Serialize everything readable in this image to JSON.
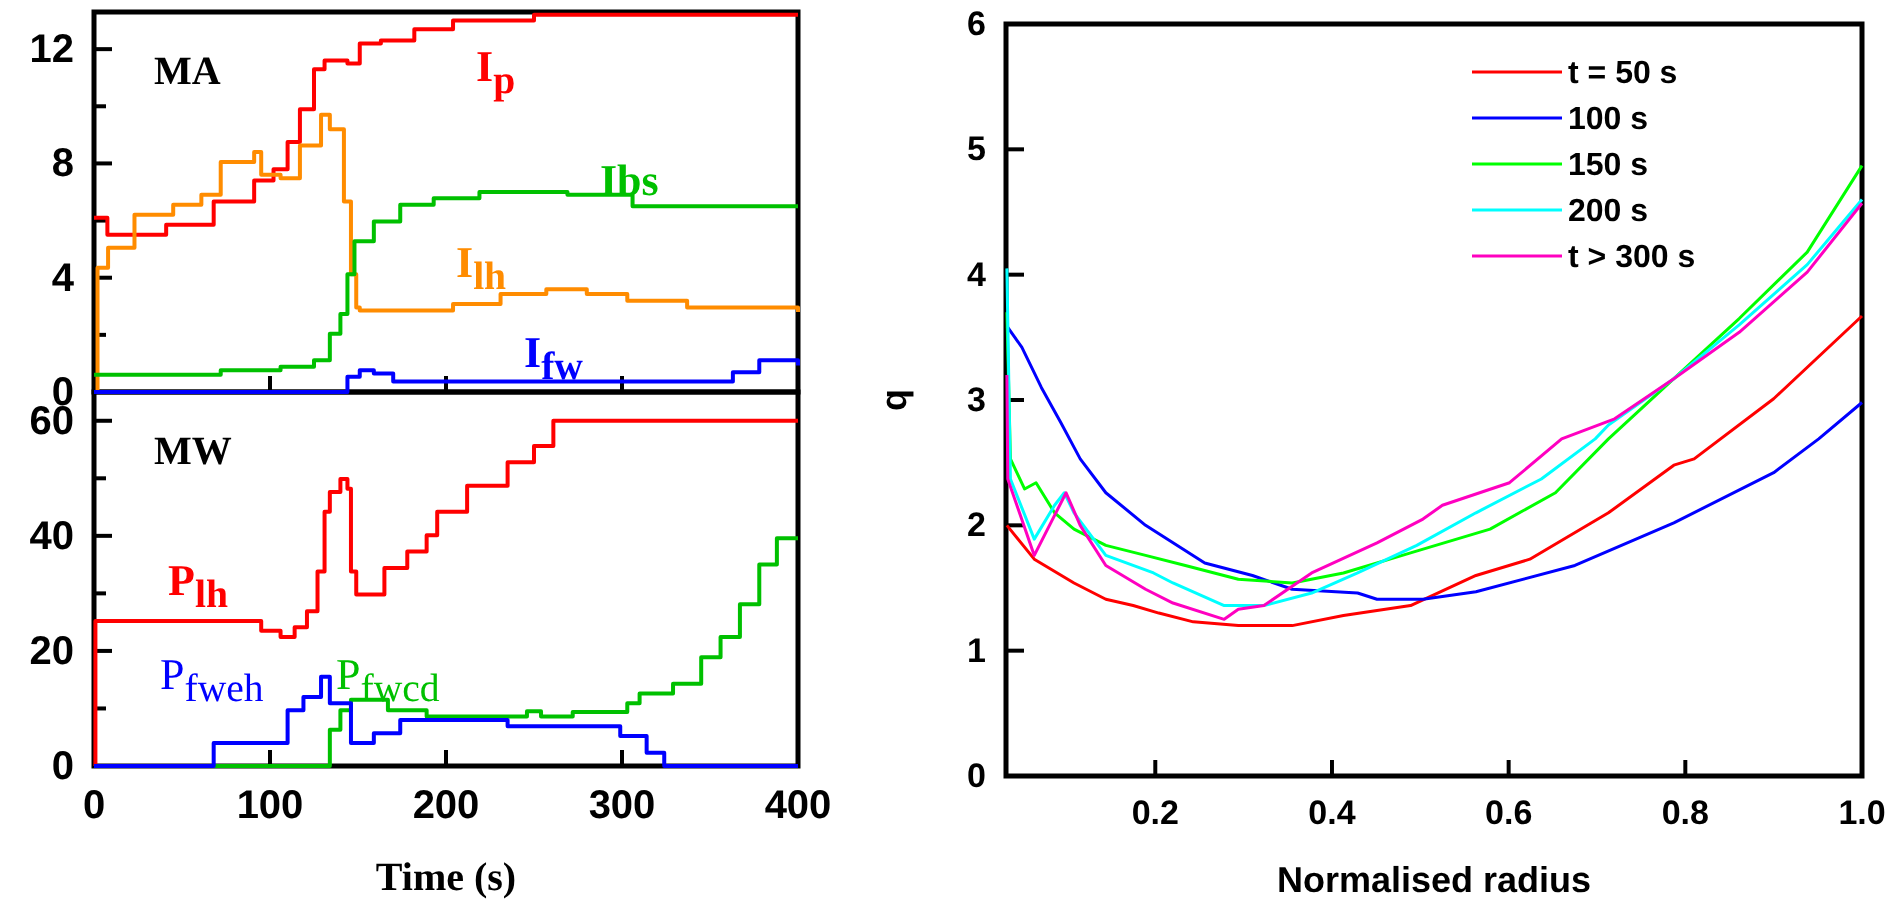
{
  "chart_data": [
    {
      "type": "step",
      "ylabel": "MA",
      "xlim": [
        0,
        400
      ],
      "ylim": [
        0,
        13.3
      ],
      "xticks": [
        0,
        100,
        200,
        300,
        400
      ],
      "yticks": [
        0,
        {
          "value": 2,
          "label": null
        },
        4,
        {
          "value": 6,
          "label": null
        },
        8,
        {
          "value": 10,
          "label": null
        },
        12
      ],
      "tick_labels": "y",
      "grid": false,
      "legend": false,
      "series": [
        {
          "name": "I$_{p}$",
          "color": "#ff0000",
          "x": [
            0,
            7.6,
            41,
            68,
            91,
            102,
            110,
            117,
            125,
            131,
            144,
            151,
            163,
            182,
            204,
            250,
            400
          ],
          "values": [
            6.1,
            5.5,
            5.85,
            6.67,
            7.4,
            7.8,
            8.75,
            9.9,
            11.3,
            11.6,
            11.5,
            12.2,
            12.3,
            12.7,
            13.0,
            13.2,
            13.2
          ]
        },
        {
          "name": "I$_{lh}$",
          "color": "#ff8c00",
          "x": [
            0,
            2,
            8,
            23,
            45,
            61,
            72,
            91,
            95,
            106,
            117,
            129,
            134,
            142,
            146,
            149,
            151,
            189,
            204,
            231,
            257,
            280,
            303,
            337,
            400
          ],
          "values": [
            0,
            4.35,
            5.05,
            6.2,
            6.55,
            6.9,
            8.05,
            8.4,
            7.6,
            7.48,
            8.63,
            9.7,
            9.2,
            6.67,
            4.12,
            2.96,
            2.85,
            2.85,
            3.08,
            3.43,
            3.6,
            3.43,
            3.19,
            2.96,
            2.8
          ]
        },
        {
          "name": "Ibs",
          "color": "#00c000",
          "x": [
            0,
            68,
            72,
            106,
            125,
            134,
            140,
            144,
            148,
            159,
            174,
            193,
            219,
            269,
            306,
            400
          ],
          "values": [
            0.6,
            0.6,
            0.76,
            0.88,
            1.11,
            2.04,
            2.73,
            4.12,
            5.28,
            5.97,
            6.55,
            6.78,
            7.0,
            6.9,
            6.5,
            6.5
          ]
        },
        {
          "name": "I$_{fw}$",
          "color": "#0000ff",
          "x": [
            0,
            132,
            144,
            151,
            159,
            170,
            348,
            363,
            378,
            394,
            400
          ],
          "values": [
            0,
            0,
            0.53,
            0.76,
            0.65,
            0.37,
            0.37,
            0.69,
            1.11,
            1.11,
            0.93
          ]
        }
      ]
    },
    {
      "type": "step",
      "ylabel": "MW",
      "xlabel": "Time (s)",
      "xlim": [
        0,
        400
      ],
      "ylim": [
        0,
        65
      ],
      "xticks": [
        0,
        100,
        200,
        300,
        400
      ],
      "yticks": [
        0,
        {
          "value": 10,
          "label": null
        },
        20,
        {
          "value": 30,
          "label": null
        },
        40,
        {
          "value": 50,
          "label": null
        },
        60
      ],
      "grid": false,
      "legend": false,
      "series": [
        {
          "name": "P$_{lh}$",
          "color": "#ff0000",
          "x": [
            0,
            0.8,
            91,
            95,
            106,
            114,
            121,
            127,
            131,
            134,
            140,
            144,
            146,
            149,
            161,
            165,
            178,
            189,
            195,
            212,
            235,
            250,
            261,
            400
          ],
          "values": [
            0,
            25.2,
            25.2,
            23.5,
            22.4,
            24.1,
            26.9,
            33.8,
            44.2,
            47.6,
            49.9,
            48.2,
            33.8,
            29.8,
            29.8,
            34.4,
            37.3,
            40.1,
            44.2,
            48.7,
            52.8,
            55.6,
            60,
            60
          ]
        },
        {
          "name": "P$_{fwcd}$",
          "color": "#00c000",
          "x": [
            0,
            129,
            134,
            140,
            146,
            155,
            167,
            189,
            242,
            246,
            254,
            272,
            303,
            310,
            329,
            345,
            356,
            367,
            378,
            388,
            400
          ],
          "values": [
            0,
            0,
            6.3,
            9.7,
            11.5,
            11.5,
            9.7,
            8.6,
            8.6,
            9.5,
            8.6,
            9.4,
            10.9,
            12.6,
            14.3,
            18.9,
            22.4,
            28.1,
            35,
            39.6,
            39.6
          ]
        },
        {
          "name": "P$_{fweh}$",
          "color": "#0000ff",
          "x": [
            0,
            61,
            68,
            100,
            110,
            119,
            129,
            134,
            146,
            159,
            174,
            231,
            235,
            280,
            299,
            314,
            324,
            400
          ],
          "values": [
            0,
            0,
            4,
            4,
            9.7,
            12,
            15.5,
            10.9,
            4,
            5.7,
            8,
            8,
            6.9,
            6.9,
            5.2,
            2.3,
            0,
            0
          ]
        }
      ]
    },
    {
      "type": "line",
      "xlabel": "Normalised radius",
      "ylabel": "q",
      "xlim": [
        0.031,
        1.0
      ],
      "ylim": [
        0,
        6
      ],
      "xticks": [
        0.2,
        0.4,
        0.6,
        0.8,
        {
          "value": 1.0,
          "label": "1.0"
        }
      ],
      "yticks": [
        0,
        1,
        2,
        3,
        4,
        5,
        6
      ],
      "grid": false,
      "legend": "top right",
      "series": [
        {
          "name": "t = 50 s",
          "color": "#ff0000",
          "x": [
            0.032,
            0.063,
            0.108,
            0.144,
            0.175,
            0.204,
            0.243,
            0.294,
            0.355,
            0.413,
            0.489,
            0.563,
            0.624,
            0.713,
            0.787,
            0.81,
            0.9,
            1.0
          ],
          "values": [
            2.0,
            1.73,
            1.54,
            1.41,
            1.36,
            1.3,
            1.23,
            1.2,
            1.2,
            1.28,
            1.36,
            1.6,
            1.73,
            2.1,
            2.48,
            2.53,
            3.01,
            3.67
          ]
        },
        {
          "name": "100 s",
          "color": "#0000ff",
          "x": [
            0.032,
            0.049,
            0.071,
            0.093,
            0.115,
            0.144,
            0.189,
            0.256,
            0.31,
            0.355,
            0.429,
            0.451,
            0.503,
            0.563,
            0.675,
            0.787,
            0.9,
            0.951,
            1.0
          ],
          "values": [
            3.59,
            3.42,
            3.1,
            2.82,
            2.53,
            2.26,
            2.0,
            1.7,
            1.6,
            1.49,
            1.46,
            1.41,
            1.41,
            1.47,
            1.68,
            2.02,
            2.42,
            2.69,
            2.98
          ]
        },
        {
          "name": "150 s",
          "color": "#00ff00",
          "x": [
            0.032,
            0.036,
            0.052,
            0.065,
            0.086,
            0.108,
            0.144,
            0.189,
            0.234,
            0.294,
            0.355,
            0.413,
            0.489,
            0.579,
            0.653,
            0.713,
            0.787,
            0.861,
            0.938,
            1.0
          ],
          "values": [
            3.7,
            2.53,
            2.29,
            2.34,
            2.1,
            1.97,
            1.84,
            1.76,
            1.68,
            1.57,
            1.54,
            1.62,
            1.78,
            1.97,
            2.26,
            2.69,
            3.17,
            3.65,
            4.18,
            4.87
          ]
        },
        {
          "name": "200 s",
          "color": "#00ffff",
          "x": [
            0.032,
            0.036,
            0.063,
            0.086,
            0.097,
            0.108,
            0.144,
            0.198,
            0.22,
            0.278,
            0.323,
            0.377,
            0.429,
            0.496,
            0.563,
            0.637,
            0.698,
            0.713,
            0.787,
            0.861,
            0.938,
            1.0
          ],
          "values": [
            4.05,
            2.37,
            1.89,
            2.16,
            2.26,
            2.1,
            1.76,
            1.62,
            1.54,
            1.36,
            1.36,
            1.46,
            1.62,
            1.84,
            2.1,
            2.37,
            2.69,
            2.8,
            3.17,
            3.6,
            4.08,
            4.6
          ]
        },
        {
          "name": "t > 300 s",
          "color": "#ff00c0",
          "x": [
            0.032,
            0.033,
            0.063,
            0.099,
            0.115,
            0.144,
            0.189,
            0.22,
            0.278,
            0.294,
            0.323,
            0.377,
            0.451,
            0.503,
            0.525,
            0.601,
            0.66,
            0.72,
            0.787,
            0.861,
            0.938,
            1.0
          ],
          "values": [
            3.2,
            2.37,
            1.76,
            2.26,
            2.0,
            1.68,
            1.49,
            1.38,
            1.25,
            1.33,
            1.36,
            1.62,
            1.86,
            2.05,
            2.16,
            2.34,
            2.69,
            2.85,
            3.17,
            3.54,
            4.02,
            4.57
          ]
        }
      ]
    }
  ]
}
